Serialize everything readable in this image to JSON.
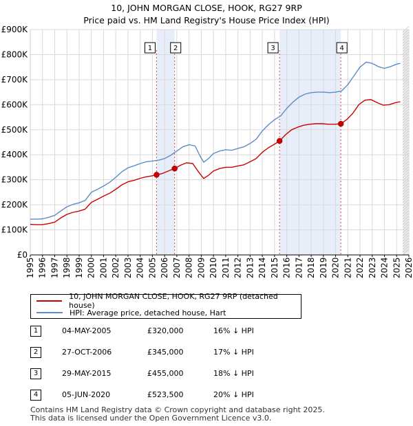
{
  "header": {
    "title": "10, JOHN MORGAN CLOSE, HOOK, RG27 9RP",
    "subtitle": "Price paid vs. HM Land Registry's House Price Index (HPI)"
  },
  "chart_data": {
    "type": "line",
    "title": "10, JOHN MORGAN CLOSE, HOOK, RG27 9RP",
    "subtitle": "Price paid vs. HM Land Registry's House Price Index (HPI)",
    "xlabel": "",
    "ylabel": "",
    "xlim": [
      1995,
      2026
    ],
    "ylim": [
      0,
      900000
    ],
    "x_ticks": [
      1995,
      1996,
      1997,
      1998,
      1999,
      2000,
      2001,
      2002,
      2003,
      2004,
      2005,
      2006,
      2007,
      2008,
      2009,
      2010,
      2011,
      2012,
      2013,
      2014,
      2015,
      2016,
      2017,
      2018,
      2019,
      2020,
      2021,
      2022,
      2023,
      2024,
      2025,
      2026
    ],
    "y_ticks": [
      {
        "value": 0,
        "label": "£0"
      },
      {
        "value": 100000,
        "label": "£100K"
      },
      {
        "value": 200000,
        "label": "£200K"
      },
      {
        "value": 300000,
        "label": "£300K"
      },
      {
        "value": 400000,
        "label": "£400K"
      },
      {
        "value": 500000,
        "label": "£500K"
      },
      {
        "value": 600000,
        "label": "£600K"
      },
      {
        "value": 700000,
        "label": "£700K"
      },
      {
        "value": 800000,
        "label": "£800K"
      },
      {
        "value": 900000,
        "label": "£900K"
      }
    ],
    "grid": true,
    "series": [
      {
        "name": "10, JOHN MORGAN CLOSE, HOOK, RG27 9RP (detached house)",
        "color": "#cc0000",
        "points": [
          [
            1995.0,
            122000
          ],
          [
            1995.5,
            121000
          ],
          [
            1996.0,
            121000
          ],
          [
            1996.5,
            125000
          ],
          [
            1997.0,
            131000
          ],
          [
            1997.5,
            148000
          ],
          [
            1998.0,
            162000
          ],
          [
            1998.5,
            170000
          ],
          [
            1999.0,
            175000
          ],
          [
            1999.5,
            183000
          ],
          [
            2000.0,
            210000
          ],
          [
            2000.5,
            222000
          ],
          [
            2001.0,
            235000
          ],
          [
            2001.5,
            246000
          ],
          [
            2002.0,
            262000
          ],
          [
            2002.5,
            280000
          ],
          [
            2003.0,
            292000
          ],
          [
            2003.5,
            298000
          ],
          [
            2004.0,
            306000
          ],
          [
            2004.5,
            312000
          ],
          [
            2005.0,
            316000
          ],
          [
            2005.34,
            320000
          ],
          [
            2005.8,
            325000
          ],
          [
            2006.3,
            335000
          ],
          [
            2006.82,
            345000
          ],
          [
            2007.3,
            358000
          ],
          [
            2007.8,
            368000
          ],
          [
            2008.3,
            365000
          ],
          [
            2008.8,
            330000
          ],
          [
            2009.2,
            305000
          ],
          [
            2009.6,
            318000
          ],
          [
            2010.0,
            335000
          ],
          [
            2010.5,
            345000
          ],
          [
            2011.0,
            350000
          ],
          [
            2011.5,
            350000
          ],
          [
            2012.0,
            355000
          ],
          [
            2012.5,
            360000
          ],
          [
            2013.0,
            372000
          ],
          [
            2013.5,
            385000
          ],
          [
            2014.0,
            410000
          ],
          [
            2014.5,
            428000
          ],
          [
            2015.0,
            442000
          ],
          [
            2015.41,
            455000
          ],
          [
            2015.9,
            480000
          ],
          [
            2016.4,
            500000
          ],
          [
            2016.9,
            510000
          ],
          [
            2017.4,
            518000
          ],
          [
            2017.9,
            522000
          ],
          [
            2018.4,
            524000
          ],
          [
            2018.9,
            524000
          ],
          [
            2019.4,
            522000
          ],
          [
            2019.9,
            522000
          ],
          [
            2020.43,
            523500
          ],
          [
            2020.9,
            540000
          ],
          [
            2021.4,
            565000
          ],
          [
            2021.9,
            600000
          ],
          [
            2022.4,
            618000
          ],
          [
            2022.9,
            620000
          ],
          [
            2023.4,
            608000
          ],
          [
            2023.9,
            598000
          ],
          [
            2024.4,
            600000
          ],
          [
            2024.9,
            608000
          ],
          [
            2025.3,
            612000
          ]
        ]
      },
      {
        "name": "HPI: Average price, detached house, Hart",
        "color": "#5b8cc5",
        "points": [
          [
            1995.0,
            143000
          ],
          [
            1995.5,
            143000
          ],
          [
            1996.0,
            144000
          ],
          [
            1996.5,
            150000
          ],
          [
            1997.0,
            158000
          ],
          [
            1997.5,
            176000
          ],
          [
            1998.0,
            192000
          ],
          [
            1998.5,
            202000
          ],
          [
            1999.0,
            208000
          ],
          [
            1999.5,
            218000
          ],
          [
            2000.0,
            250000
          ],
          [
            2000.5,
            262000
          ],
          [
            2001.0,
            275000
          ],
          [
            2001.5,
            290000
          ],
          [
            2002.0,
            310000
          ],
          [
            2002.5,
            332000
          ],
          [
            2003.0,
            348000
          ],
          [
            2003.5,
            356000
          ],
          [
            2004.0,
            365000
          ],
          [
            2004.5,
            372000
          ],
          [
            2005.0,
            375000
          ],
          [
            2005.5,
            378000
          ],
          [
            2006.0,
            385000
          ],
          [
            2006.5,
            398000
          ],
          [
            2007.0,
            415000
          ],
          [
            2007.5,
            432000
          ],
          [
            2008.0,
            440000
          ],
          [
            2008.5,
            435000
          ],
          [
            2008.9,
            395000
          ],
          [
            2009.2,
            370000
          ],
          [
            2009.6,
            385000
          ],
          [
            2010.0,
            405000
          ],
          [
            2010.5,
            415000
          ],
          [
            2011.0,
            420000
          ],
          [
            2011.5,
            418000
          ],
          [
            2012.0,
            425000
          ],
          [
            2012.5,
            432000
          ],
          [
            2013.0,
            445000
          ],
          [
            2013.5,
            462000
          ],
          [
            2014.0,
            495000
          ],
          [
            2014.5,
            520000
          ],
          [
            2015.0,
            540000
          ],
          [
            2015.5,
            555000
          ],
          [
            2016.0,
            585000
          ],
          [
            2016.5,
            610000
          ],
          [
            2017.0,
            630000
          ],
          [
            2017.5,
            642000
          ],
          [
            2018.0,
            648000
          ],
          [
            2018.5,
            650000
          ],
          [
            2019.0,
            650000
          ],
          [
            2019.5,
            648000
          ],
          [
            2020.0,
            650000
          ],
          [
            2020.5,
            655000
          ],
          [
            2021.0,
            680000
          ],
          [
            2021.5,
            715000
          ],
          [
            2022.0,
            750000
          ],
          [
            2022.5,
            770000
          ],
          [
            2023.0,
            765000
          ],
          [
            2023.5,
            752000
          ],
          [
            2024.0,
            745000
          ],
          [
            2024.5,
            752000
          ],
          [
            2025.0,
            762000
          ],
          [
            2025.3,
            765000
          ]
        ]
      }
    ],
    "sales": [
      {
        "label": "1",
        "x": 2005.34,
        "value": 320000
      },
      {
        "label": "2",
        "x": 2006.82,
        "value": 345000
      },
      {
        "label": "3",
        "x": 2015.41,
        "value": 455000
      },
      {
        "label": "4",
        "x": 2020.43,
        "value": 523500
      }
    ],
    "shaded_ranges": [
      [
        2005.34,
        2006.82
      ],
      [
        2015.41,
        2020.43
      ]
    ],
    "projection_from": 2025.5,
    "legend_position": "below"
  },
  "legend": {
    "property_label": "10, JOHN MORGAN CLOSE, HOOK, RG27 9RP (detached house)",
    "hpi_label": "HPI: Average price, detached house, Hart",
    "property_color": "#cc0000",
    "hpi_color": "#5b8cc5"
  },
  "transactions": [
    {
      "num": "1",
      "date": "04-MAY-2005",
      "price": "£320,000",
      "hpi": "16% ↓ HPI"
    },
    {
      "num": "2",
      "date": "27-OCT-2006",
      "price": "£345,000",
      "hpi": "17% ↓ HPI"
    },
    {
      "num": "3",
      "date": "29-MAY-2015",
      "price": "£455,000",
      "hpi": "18% ↓ HPI"
    },
    {
      "num": "4",
      "date": "05-JUN-2020",
      "price": "£523,500",
      "hpi": "20% ↓ HPI"
    }
  ],
  "footer": {
    "line1": "Contains HM Land Registry data © Crown copyright and database right 2025.",
    "line2": "This data is licensed under the Open Government Licence v3.0."
  }
}
